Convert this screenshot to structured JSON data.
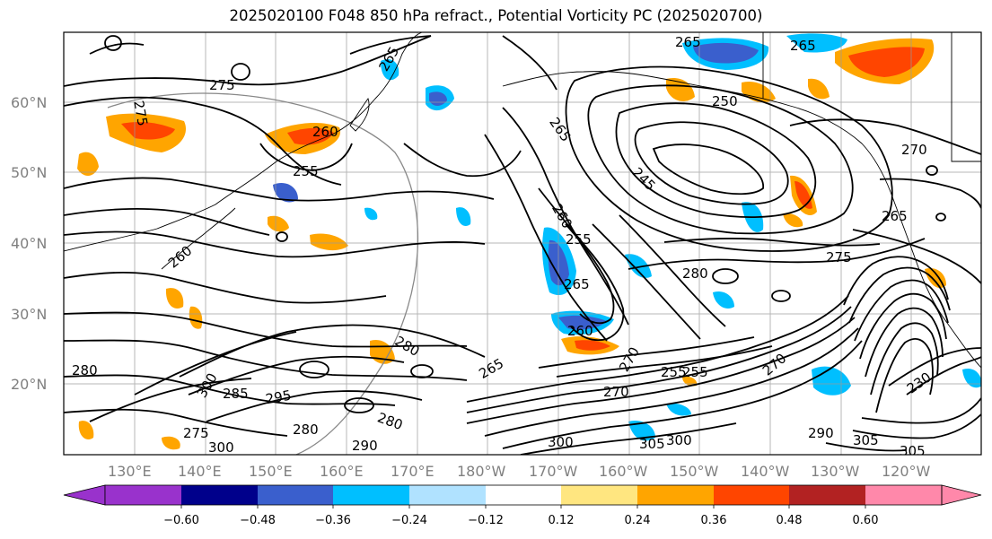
{
  "title": "2025020100 F048 850 hPa refract., Potential Vorticity PC (2025020700)",
  "map": {
    "lat_labels": [
      "60°N",
      "50°N",
      "40°N",
      "30°N",
      "20°N"
    ],
    "lon_labels": [
      "130°E",
      "140°E",
      "150°E",
      "160°E",
      "170°E",
      "180°W",
      "170°W",
      "160°W",
      "150°W",
      "140°W",
      "130°W",
      "120°W"
    ],
    "contour_labels": [
      "275",
      "275",
      "265",
      "265",
      "255",
      "250",
      "260",
      "255",
      "265",
      "245",
      "260",
      "270",
      "265",
      "275",
      "280",
      "265",
      "260",
      "255",
      "230",
      "280",
      "300",
      "285",
      "295",
      "280",
      "270",
      "265",
      "270",
      "280",
      "290",
      "255",
      "300",
      "305",
      "300",
      "305",
      "290",
      "305",
      "280",
      "300",
      "275",
      "270",
      "265",
      "260"
    ]
  },
  "colorbar": {
    "ticks": [
      "−0.60",
      "−0.48",
      "−0.36",
      "−0.24",
      "−0.12",
      "0.12",
      "0.24",
      "0.36",
      "0.48",
      "0.60"
    ],
    "colors": [
      "#9932CC",
      "#00008B",
      "#3A5FCD",
      "#00BFFF",
      "#B0E2FF",
      "#FFFFFF",
      "#FFE680",
      "#FFA500",
      "#FF4500",
      "#B22222",
      "#FF88AA",
      "#FF88AA"
    ]
  }
}
